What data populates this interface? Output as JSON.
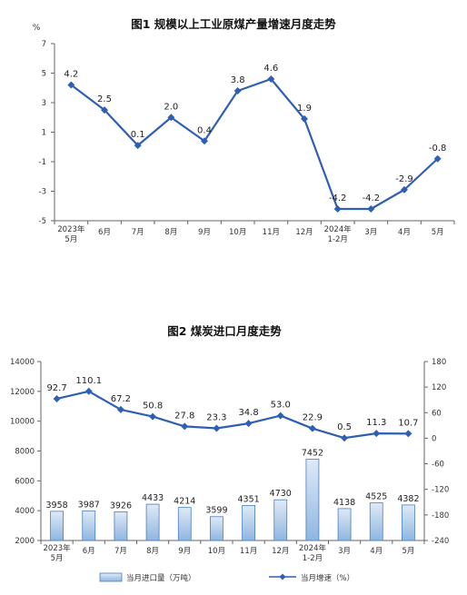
{
  "colors": {
    "line": "#2f5fb3",
    "bar_fill_top": "#dfeaf7",
    "bar_fill_bottom": "#8fb6e0",
    "bar_stroke": "#4a7ebf",
    "axis": "#666666"
  },
  "chart_data": [
    {
      "type": "line",
      "title": "图1  规模以上工业原煤产量增速月度走势",
      "yunit": "%",
      "ylim": [
        -5,
        7
      ],
      "yticks": [
        "7",
        "5",
        "3",
        "1",
        "-1",
        "-3",
        "-5"
      ],
      "categories": [
        [
          "2023年",
          "5月"
        ],
        [
          "6月"
        ],
        [
          "7月"
        ],
        [
          "8月"
        ],
        [
          "9月"
        ],
        [
          "10月"
        ],
        [
          "11月"
        ],
        [
          "12月"
        ],
        [
          "2024年",
          "1-2月"
        ],
        [
          "3月"
        ],
        [
          "4月"
        ],
        [
          "5月"
        ]
      ],
      "series": [
        {
          "values": [
            4.2,
            2.5,
            0.1,
            2.0,
            0.4,
            3.8,
            4.6,
            1.9,
            -4.2,
            -4.2,
            -2.9,
            -0.8
          ],
          "labels": [
            "4.2",
            "2.5",
            "0.1",
            "2.0",
            "0.4",
            "3.8",
            "4.6",
            "1.9",
            "-4.2",
            "-4.2",
            "-2.9",
            "-0.8"
          ]
        }
      ]
    },
    {
      "type": "bar+line",
      "title": "图2  煤炭进口月度走势",
      "left_ylim": [
        2000,
        14000
      ],
      "left_yticks": [
        "14000",
        "12000",
        "10000",
        "8000",
        "6000",
        "4000",
        "2000"
      ],
      "right_ylim": [
        -240,
        180
      ],
      "right_yticks": [
        "180",
        "120",
        "60",
        "0",
        "-60",
        "-120",
        "-180",
        "-240"
      ],
      "categories": [
        [
          "2023年",
          "5月"
        ],
        [
          "6月"
        ],
        [
          "7月"
        ],
        [
          "8月"
        ],
        [
          "9月"
        ],
        [
          "10月"
        ],
        [
          "11月"
        ],
        [
          "12月"
        ],
        [
          "2024年",
          "1-2月"
        ],
        [
          "3月"
        ],
        [
          "4月"
        ],
        [
          "5月"
        ]
      ],
      "series": [
        {
          "name": "当月进口量（万吨）",
          "kind": "bar",
          "values": [
            3958,
            3987,
            3926,
            4433,
            4214,
            3599,
            4351,
            4730,
            7452,
            4138,
            4525,
            4382
          ],
          "labels": [
            "3958",
            "3987",
            "3926",
            "4433",
            "4214",
            "3599",
            "4351",
            "4730",
            "7452",
            "4138",
            "4525",
            "4382"
          ]
        },
        {
          "name": "当月增速（%）",
          "kind": "line",
          "values": [
            92.7,
            110.1,
            67.2,
            50.8,
            27.8,
            23.3,
            34.8,
            53.0,
            22.9,
            0.5,
            11.3,
            10.7
          ],
          "labels": [
            "92.7",
            "110.1",
            "67.2",
            "50.8",
            "27.8",
            "23.3",
            "34.8",
            "53.0",
            "22.9",
            "0.5",
            "11.3",
            "10.7"
          ]
        }
      ],
      "legend_position": "bottom"
    }
  ]
}
